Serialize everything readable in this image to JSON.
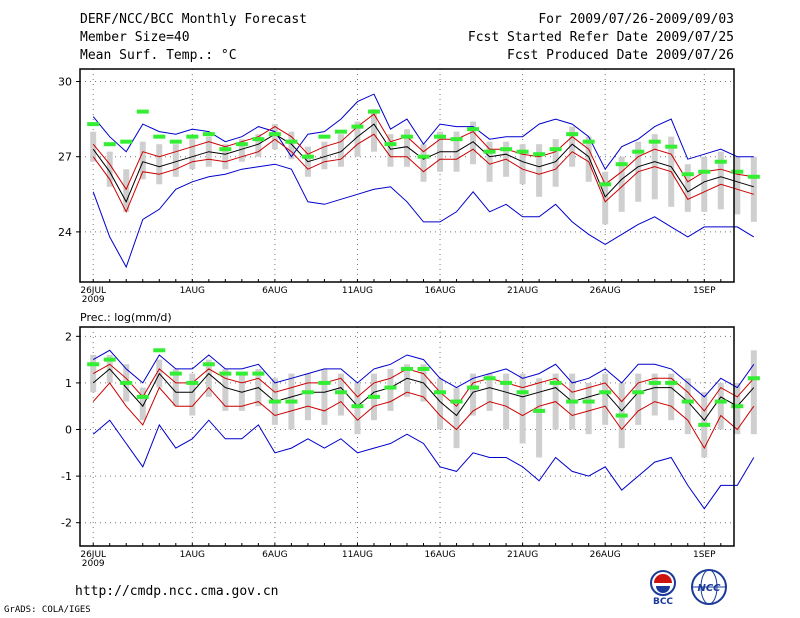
{
  "header": {
    "title": "DERF/NCC/BCC Monthly Forecast",
    "member_size": "Member Size=40",
    "variable": "Mean Surf. Temp.: °C",
    "period": "For 2009/07/26-2009/09/03",
    "start_date": "Fcst Started Refer Date 2009/07/25",
    "produced_date": "Fcst Produced Date 2009/07/26"
  },
  "footer": {
    "url": "http://cmdp.ncc.cma.gov.cn",
    "credit": "GrADS: COLA/IGES",
    "logo_left_text": "BCC",
    "logo_right_text": "NCC"
  },
  "colors": {
    "ensemble_mean": "#000000",
    "upper_bound": "#0000cc",
    "lower_bound": "#0000cc",
    "red_band": "#cc0000",
    "green_marker": "#33ee33",
    "spread_bar": "#cfcfcf"
  },
  "chart_data": [
    {
      "type": "line",
      "title": "Mean Surf. Temp.: °C",
      "ylim": [
        22,
        30.5
      ],
      "yticks": [
        24,
        27,
        30
      ],
      "xlim": [
        -0.8,
        38.8
      ],
      "grid": "dotted",
      "x_ticks": [
        {
          "day": 0,
          "label": "26JUL",
          "sub": "2009"
        },
        {
          "day": 6,
          "label": "1AUG"
        },
        {
          "day": 11,
          "label": "6AUG"
        },
        {
          "day": 16,
          "label": "11AUG"
        },
        {
          "day": 21,
          "label": "16AUG"
        },
        {
          "day": 26,
          "label": "21AUG"
        },
        {
          "day": 31,
          "label": "26AUG"
        },
        {
          "day": 37,
          "label": "1SEP"
        }
      ],
      "series": [
        {
          "name": "ensemble-mean",
          "color": "black",
          "values": [
            27.3,
            26.4,
            25.2,
            26.8,
            26.6,
            26.8,
            27.0,
            27.2,
            27.1,
            27.3,
            27.5,
            27.9,
            27.5,
            26.8,
            27.0,
            27.2,
            27.8,
            28.3,
            27.3,
            27.4,
            26.9,
            27.2,
            27.2,
            27.6,
            27.0,
            27.1,
            26.8,
            26.6,
            26.8,
            27.5,
            27.0,
            25.4,
            26.1,
            26.6,
            26.8,
            26.6,
            25.6,
            26.0,
            26.2,
            26.0,
            25.8
          ]
        },
        {
          "name": "red-upper",
          "color": "red",
          "values": [
            27.5,
            26.7,
            25.7,
            27.2,
            27.0,
            27.2,
            27.4,
            27.6,
            27.4,
            27.6,
            27.8,
            28.2,
            27.8,
            27.1,
            27.4,
            27.6,
            28.2,
            28.7,
            27.6,
            27.8,
            27.2,
            27.7,
            27.7,
            28.0,
            27.3,
            27.3,
            27.1,
            27.0,
            27.2,
            27.8,
            27.3,
            25.9,
            26.4,
            27.0,
            27.3,
            27.1,
            26.0,
            26.4,
            26.5,
            26.3,
            26.2
          ]
        },
        {
          "name": "red-lower",
          "color": "red",
          "values": [
            27.0,
            26.1,
            24.8,
            26.4,
            26.3,
            26.5,
            26.8,
            26.9,
            26.8,
            27.0,
            27.2,
            27.7,
            27.2,
            26.5,
            26.8,
            26.9,
            27.5,
            27.9,
            27.0,
            27.0,
            26.4,
            26.9,
            26.9,
            27.3,
            26.7,
            26.9,
            26.5,
            26.3,
            26.5,
            27.2,
            26.8,
            25.2,
            25.8,
            26.4,
            26.6,
            26.4,
            25.3,
            25.6,
            25.9,
            25.7,
            25.5
          ]
        },
        {
          "name": "blue-max",
          "color": "blue",
          "values": [
            28.6,
            27.8,
            27.2,
            28.3,
            28.0,
            27.9,
            28.1,
            28.0,
            27.6,
            27.8,
            28.2,
            28.0,
            27.0,
            27.9,
            28.0,
            28.5,
            29.2,
            29.5,
            28.1,
            28.5,
            27.5,
            28.3,
            28.2,
            28.2,
            27.7,
            27.8,
            27.8,
            28.3,
            28.5,
            28.3,
            27.8,
            26.5,
            27.4,
            27.7,
            28.2,
            28.5,
            26.9,
            27.1,
            27.3,
            27.0,
            27.0
          ]
        },
        {
          "name": "blue-min",
          "color": "blue",
          "values": [
            25.6,
            23.8,
            22.6,
            24.5,
            24.9,
            25.7,
            26.0,
            26.2,
            26.3,
            26.5,
            26.6,
            26.7,
            26.5,
            25.2,
            25.1,
            25.3,
            25.5,
            25.7,
            25.8,
            25.2,
            24.4,
            24.4,
            24.8,
            25.6,
            24.8,
            25.1,
            24.6,
            24.6,
            25.1,
            24.4,
            23.9,
            23.5,
            23.9,
            24.3,
            24.6,
            24.2,
            23.8,
            24.2,
            24.2,
            24.2,
            23.8
          ]
        },
        {
          "name": "green-markers",
          "color": "green",
          "values": [
            28.3,
            27.5,
            27.6,
            28.8,
            27.8,
            27.6,
            27.8,
            27.9,
            27.3,
            27.5,
            27.7,
            27.9,
            27.6,
            27.0,
            27.8,
            28.0,
            28.2,
            28.8,
            27.5,
            27.8,
            27.0,
            27.8,
            27.7,
            28.1,
            27.2,
            27.3,
            27.2,
            27.1,
            27.3,
            27.9,
            27.6,
            25.9,
            26.7,
            27.2,
            27.6,
            27.4,
            26.3,
            26.4,
            26.8,
            26.4,
            26.2
          ]
        },
        {
          "name": "spread-top",
          "color": "grey",
          "values": [
            28.0,
            27.2,
            26.5,
            27.6,
            27.5,
            27.5,
            27.7,
            27.8,
            27.5,
            27.7,
            27.9,
            28.3,
            28.0,
            27.4,
            27.6,
            27.9,
            28.4,
            28.9,
            27.9,
            28.1,
            27.5,
            28.0,
            28.0,
            28.4,
            27.6,
            27.6,
            27.5,
            27.5,
            27.7,
            28.2,
            27.8,
            26.4,
            27.0,
            27.6,
            27.9,
            27.8,
            26.7,
            27.0,
            27.2,
            27.0,
            27.0
          ]
        },
        {
          "name": "spread-bottom",
          "color": "grey",
          "values": [
            26.8,
            25.8,
            24.8,
            26.1,
            25.9,
            26.2,
            26.5,
            26.6,
            26.5,
            26.8,
            27.0,
            27.3,
            26.9,
            26.2,
            26.5,
            26.6,
            27.0,
            27.2,
            26.6,
            26.6,
            26.0,
            26.4,
            26.4,
            26.7,
            26.0,
            26.2,
            25.9,
            25.4,
            25.8,
            26.6,
            26.0,
            24.3,
            24.8,
            25.2,
            25.3,
            25.0,
            24.8,
            24.8,
            24.9,
            24.7,
            24.4
          ]
        }
      ]
    },
    {
      "type": "line",
      "title": "Prec.: log(mm/d)",
      "ylim": [
        -2.5,
        2.2
      ],
      "yticks": [
        -2,
        -1,
        0,
        1,
        2
      ],
      "xlim": [
        -0.8,
        38.8
      ],
      "grid": "dotted",
      "x_ticks": [
        {
          "day": 0,
          "label": "26JUL",
          "sub": "2009"
        },
        {
          "day": 6,
          "label": "1AUG"
        },
        {
          "day": 11,
          "label": "6AUG"
        },
        {
          "day": 16,
          "label": "11AUG"
        },
        {
          "day": 21,
          "label": "16AUG"
        },
        {
          "day": 26,
          "label": "21AUG"
        },
        {
          "day": 31,
          "label": "26AUG"
        },
        {
          "day": 37,
          "label": "1SEP"
        }
      ],
      "series": [
        {
          "name": "ensemble-mean",
          "color": "black",
          "values": [
            1.0,
            1.3,
            0.9,
            0.5,
            1.2,
            0.8,
            0.8,
            1.2,
            0.9,
            0.8,
            0.9,
            0.6,
            0.7,
            0.8,
            0.8,
            0.9,
            0.5,
            0.8,
            0.9,
            1.1,
            1.0,
            0.6,
            0.3,
            0.8,
            0.9,
            0.8,
            0.7,
            0.8,
            0.9,
            0.6,
            0.7,
            0.8,
            0.4,
            0.8,
            0.9,
            0.9,
            0.6,
            0.2,
            0.7,
            0.5,
            0.9
          ]
        },
        {
          "name": "red-upper",
          "color": "red",
          "values": [
            1.2,
            1.4,
            1.1,
            0.7,
            1.3,
            1.0,
            1.0,
            1.3,
            1.1,
            1.0,
            1.1,
            0.8,
            0.9,
            1.0,
            1.0,
            1.1,
            0.7,
            1.0,
            1.1,
            1.3,
            1.2,
            0.8,
            0.5,
            1.0,
            1.1,
            1.0,
            0.9,
            1.0,
            1.1,
            0.8,
            0.9,
            1.0,
            0.6,
            1.0,
            1.1,
            1.1,
            0.8,
            0.4,
            0.9,
            0.7,
            1.1
          ]
        },
        {
          "name": "red-lower",
          "color": "red",
          "values": [
            0.6,
            1.0,
            0.5,
            0.1,
            0.9,
            0.5,
            0.5,
            0.9,
            0.5,
            0.5,
            0.6,
            0.3,
            0.4,
            0.5,
            0.4,
            0.6,
            0.2,
            0.5,
            0.6,
            0.8,
            0.7,
            0.3,
            0.0,
            0.4,
            0.6,
            0.5,
            0.3,
            0.5,
            0.6,
            0.3,
            0.4,
            0.5,
            0.0,
            0.4,
            0.6,
            0.5,
            0.2,
            -0.4,
            0.3,
            0.0,
            0.5
          ]
        },
        {
          "name": "blue-max",
          "color": "blue",
          "values": [
            1.5,
            1.7,
            1.3,
            1.0,
            1.6,
            1.3,
            1.3,
            1.6,
            1.3,
            1.3,
            1.4,
            1.0,
            1.1,
            1.2,
            1.3,
            1.3,
            1.0,
            1.3,
            1.4,
            1.6,
            1.5,
            1.1,
            0.9,
            1.1,
            1.2,
            1.3,
            1.1,
            1.2,
            1.4,
            1.0,
            1.1,
            1.3,
            1.0,
            1.4,
            1.4,
            1.3,
            1.0,
            0.7,
            1.1,
            0.9,
            1.4
          ]
        },
        {
          "name": "blue-min",
          "color": "blue",
          "values": [
            -0.1,
            0.2,
            -0.3,
            -0.8,
            0.1,
            -0.4,
            -0.2,
            0.2,
            -0.2,
            -0.2,
            0.1,
            -0.5,
            -0.4,
            -0.2,
            -0.4,
            -0.2,
            -0.5,
            -0.4,
            -0.3,
            -0.1,
            -0.3,
            -0.8,
            -0.9,
            -0.5,
            -0.6,
            -0.6,
            -0.8,
            -1.1,
            -0.6,
            -0.9,
            -1.0,
            -0.8,
            -1.3,
            -1.0,
            -0.7,
            -0.6,
            -1.2,
            -1.7,
            -1.2,
            -1.2,
            -0.6
          ]
        },
        {
          "name": "green-markers",
          "color": "green",
          "values": [
            1.4,
            1.5,
            1.0,
            0.7,
            1.7,
            1.2,
            1.0,
            1.4,
            1.2,
            1.2,
            1.2,
            0.6,
            0.6,
            0.8,
            1.0,
            0.8,
            0.5,
            0.7,
            0.9,
            1.3,
            1.3,
            0.8,
            0.6,
            0.9,
            1.1,
            1.0,
            0.8,
            0.4,
            1.0,
            0.6,
            0.6,
            0.8,
            0.3,
            0.8,
            1.0,
            1.0,
            0.6,
            0.1,
            0.6,
            0.5,
            1.1
          ]
        },
        {
          "name": "spread-top",
          "color": "grey",
          "values": [
            1.6,
            1.6,
            1.4,
            0.9,
            1.5,
            1.3,
            1.2,
            1.5,
            1.3,
            1.2,
            1.3,
            1.1,
            1.2,
            1.2,
            1.3,
            1.2,
            1.0,
            1.2,
            1.3,
            1.4,
            1.4,
            1.1,
            0.9,
            1.2,
            1.2,
            1.2,
            1.2,
            1.1,
            1.2,
            1.2,
            1.0,
            1.2,
            1.0,
            1.2,
            1.2,
            1.2,
            1.1,
            0.8,
            1.0,
            1.0,
            1.7
          ]
        },
        {
          "name": "spread-bottom",
          "color": "grey",
          "values": [
            0.8,
            1.0,
            0.6,
            0.2,
            0.9,
            0.5,
            0.3,
            0.7,
            0.4,
            0.4,
            0.5,
            0.1,
            0.0,
            0.2,
            0.1,
            0.3,
            -0.1,
            0.2,
            0.4,
            0.7,
            0.6,
            0.0,
            -0.4,
            0.3,
            0.4,
            0.0,
            -0.3,
            -0.6,
            0.0,
            0.0,
            -0.1,
            0.1,
            -0.4,
            0.1,
            0.3,
            0.2,
            -0.1,
            -0.6,
            0.0,
            -0.1,
            -0.1
          ]
        }
      ]
    }
  ]
}
